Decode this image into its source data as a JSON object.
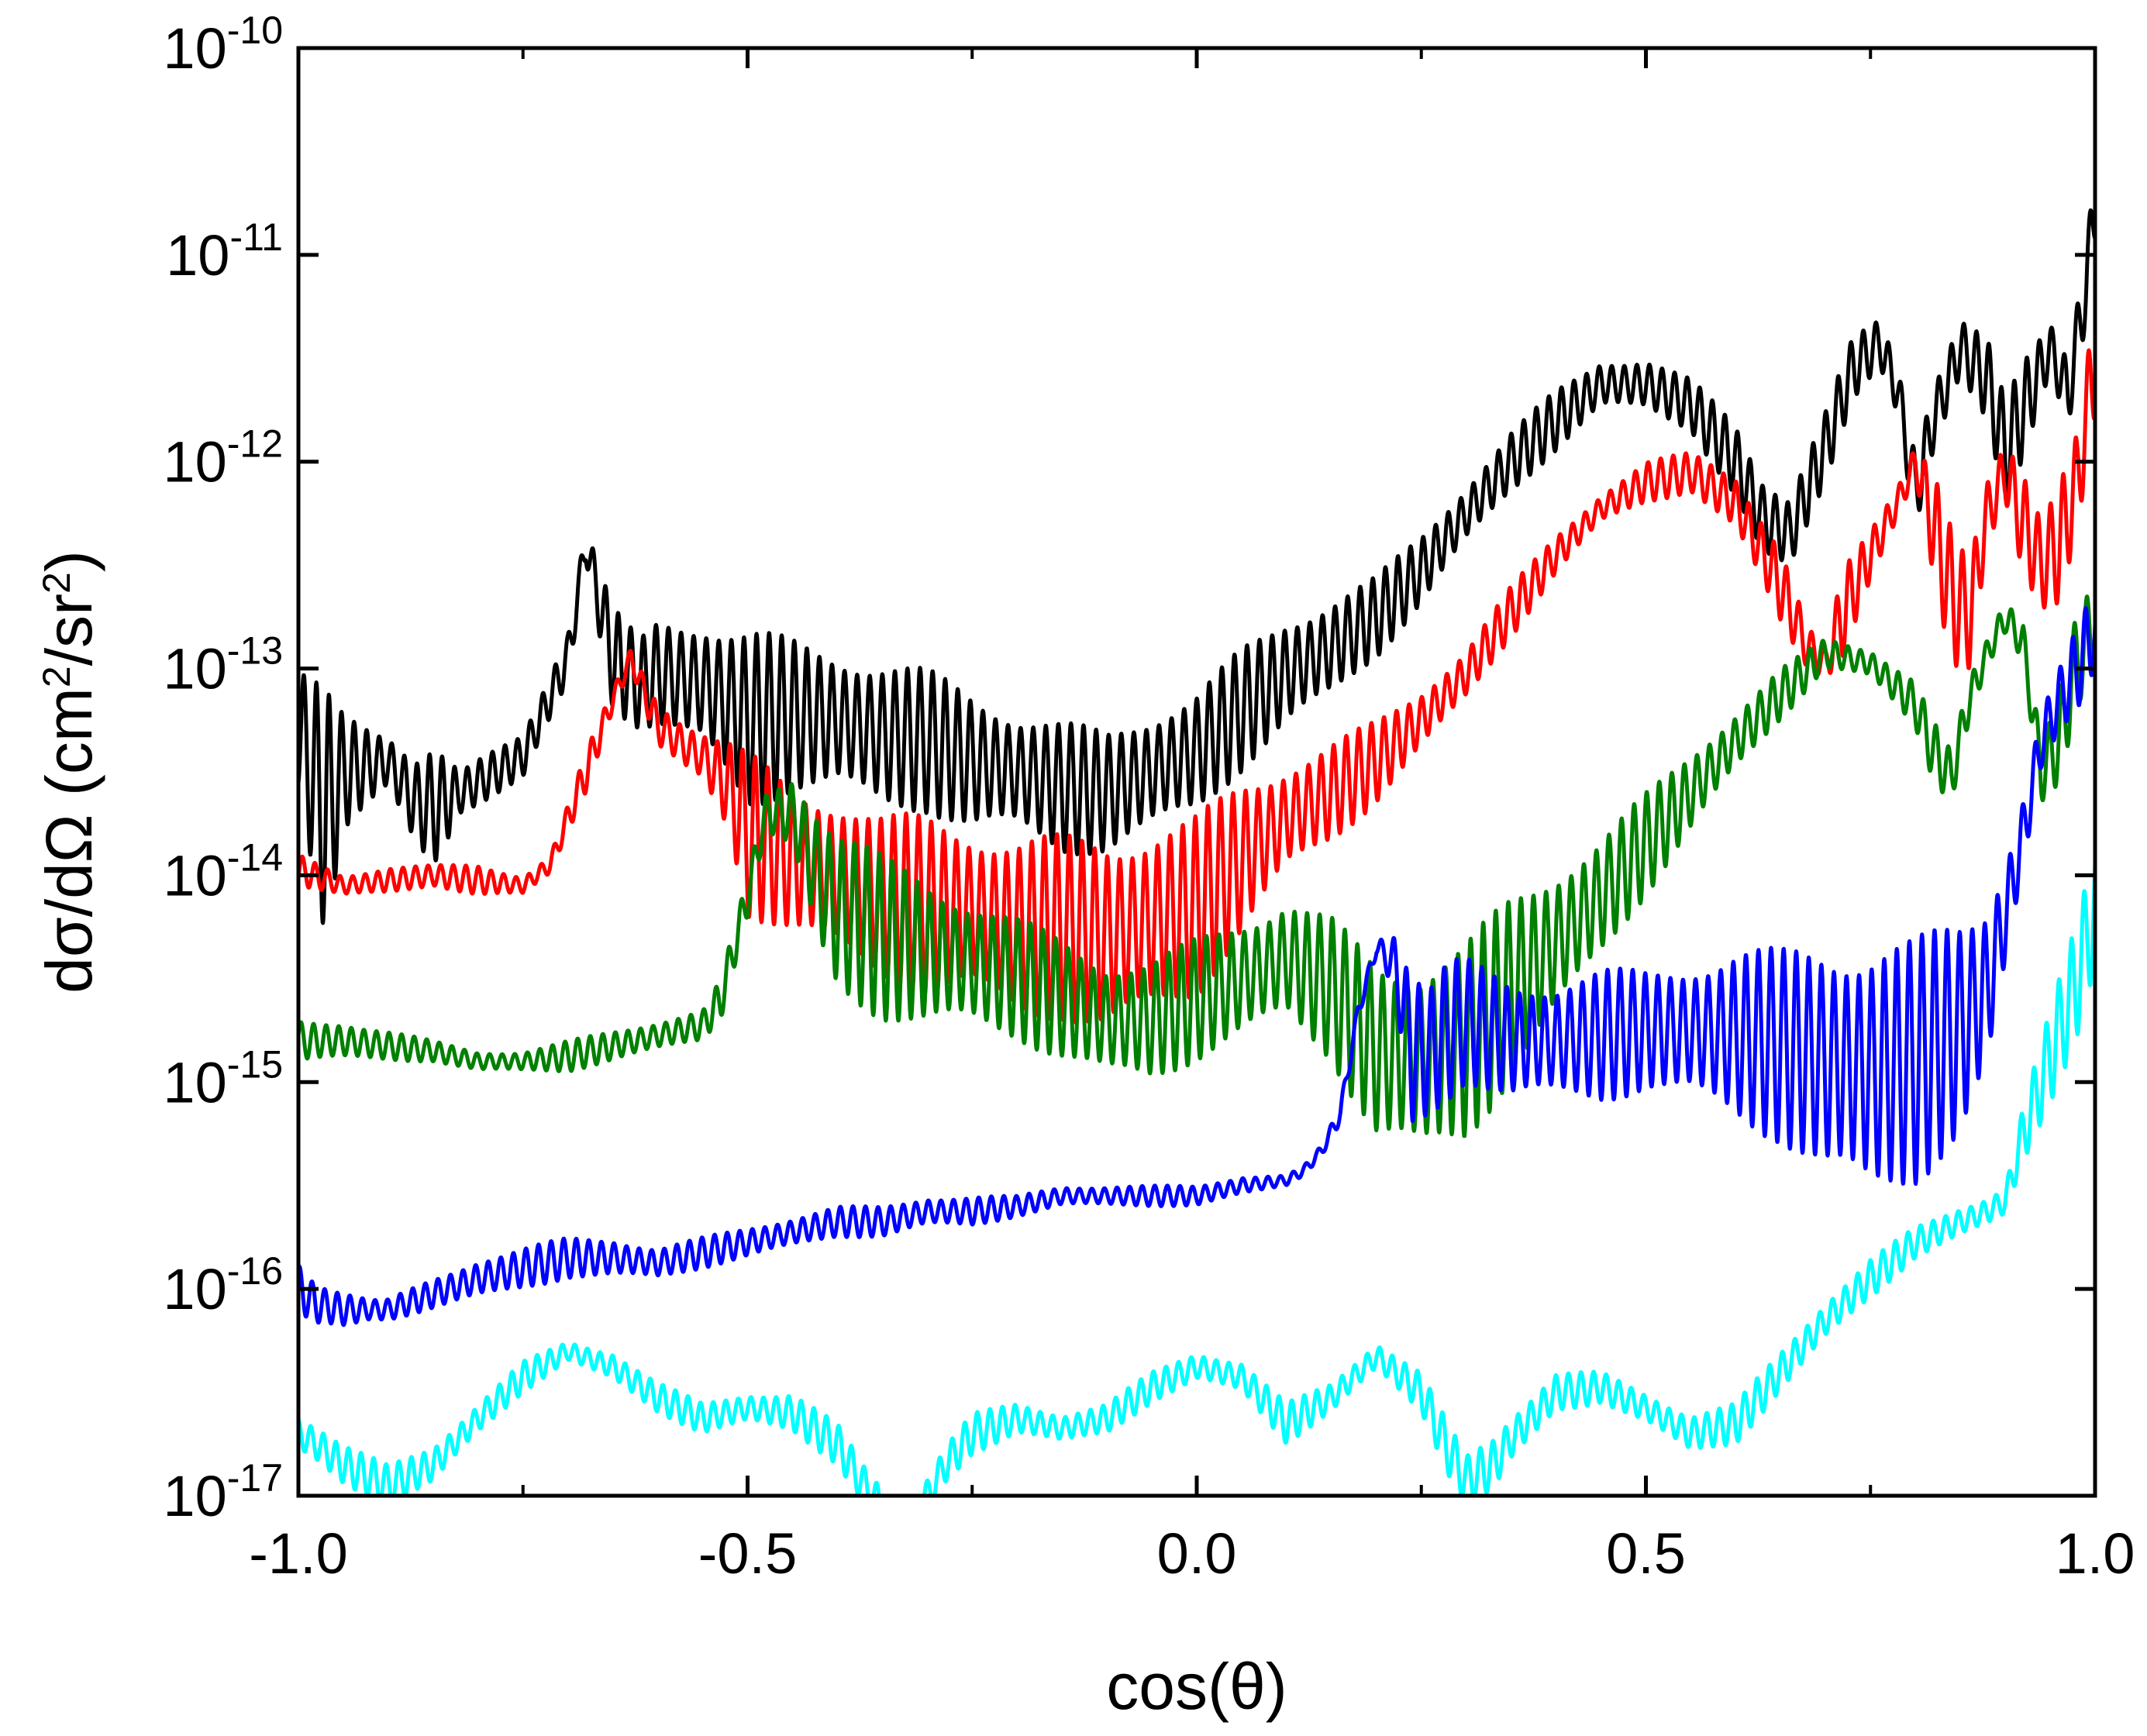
{
  "chart_data": {
    "type": "line",
    "xlabel": "cos(θ)",
    "ylabel": "dσ/dΩ (cm²/sr²)",
    "ylabel_parts": {
      "main": "dσ/dΩ (cm",
      "sup1": "2",
      "mid": "/sr",
      "sup2": "2",
      "end": ")"
    },
    "xscale": "linear",
    "yscale": "log",
    "xlim": [
      -1.0,
      1.0
    ],
    "ylim": [
      1e-17,
      1e-10
    ],
    "x_ticks": [
      -1.0,
      -0.5,
      0.0,
      0.5,
      1.0
    ],
    "x_tick_labels": [
      "-1.0",
      "-0.5",
      "0.0",
      "0.5",
      "1.0"
    ],
    "y_ticks": [
      -17,
      -16,
      -15,
      -14,
      -13,
      -12,
      -11,
      -10
    ],
    "y_tick_labels": [
      {
        "base": "10",
        "exp": "-17"
      },
      {
        "base": "10",
        "exp": "-16"
      },
      {
        "base": "10",
        "exp": "-15"
      },
      {
        "base": "10",
        "exp": "-14"
      },
      {
        "base": "10",
        "exp": "-13"
      },
      {
        "base": "10",
        "exp": "-12"
      },
      {
        "base": "10",
        "exp": "-11"
      },
      {
        "base": "10",
        "exp": "-10"
      }
    ],
    "grid": false,
    "legend": "none",
    "series": [
      {
        "name": "black",
        "color": "#000000",
        "envelope": {
          "x": [
            -1.0,
            -0.97,
            -0.95,
            -0.9,
            -0.87,
            -0.85,
            -0.82,
            -0.75,
            -0.7,
            -0.68,
            -0.65,
            -0.62,
            -0.6,
            -0.55,
            -0.5,
            -0.45,
            -0.4,
            -0.35,
            -0.3,
            -0.25,
            -0.2,
            -0.15,
            -0.1,
            -0.05,
            0.0,
            0.05,
            0.1,
            0.15,
            0.2,
            0.25,
            0.3,
            0.35,
            0.4,
            0.45,
            0.5,
            0.55,
            0.6,
            0.63,
            0.66,
            0.7,
            0.73,
            0.76,
            0.78,
            0.8,
            0.82,
            0.85,
            0.88,
            0.9,
            0.92,
            0.95,
            0.97,
            0.99,
            1.0
          ],
          "hi": [
            -13.0,
            -13.1,
            -13.2,
            -13.3,
            -13.4,
            -13.35,
            -13.5,
            -13.3,
            -12.8,
            -12.3,
            -12.7,
            -12.85,
            -12.75,
            -12.75,
            -12.8,
            -12.85,
            -12.9,
            -12.95,
            -13.0,
            -13.1,
            -13.2,
            -13.25,
            -13.3,
            -13.2,
            -13.1,
            -12.9,
            -12.75,
            -12.65,
            -12.55,
            -12.35,
            -12.1,
            -11.85,
            -11.65,
            -11.5,
            -11.5,
            -11.6,
            -11.8,
            -12.05,
            -12.15,
            -11.75,
            -11.4,
            -11.3,
            -11.5,
            -11.9,
            -11.6,
            -11.3,
            -11.4,
            -11.7,
            -11.5,
            -11.3,
            -11.45,
            -10.9,
            -10.5
          ],
          "lo": [
            -13.6,
            -14.3,
            -13.8,
            -13.6,
            -13.9,
            -14.0,
            -13.7,
            -13.55,
            -13.1,
            -12.5,
            -13.2,
            -13.3,
            -13.3,
            -13.4,
            -13.7,
            -13.6,
            -13.6,
            -13.7,
            -13.7,
            -13.8,
            -13.8,
            -13.9,
            -13.9,
            -13.8,
            -13.7,
            -13.5,
            -13.3,
            -13.15,
            -12.95,
            -12.7,
            -12.4,
            -12.15,
            -11.95,
            -11.75,
            -11.75,
            -11.85,
            -12.2,
            -12.5,
            -12.55,
            -12.1,
            -11.7,
            -11.55,
            -11.8,
            -12.4,
            -12.0,
            -11.6,
            -11.8,
            -12.2,
            -12.0,
            -11.6,
            -11.9,
            -11.4,
            -11.0
          ],
          "osc_period": 0.014
        }
      },
      {
        "name": "red",
        "color": "#ff0000",
        "envelope": {
          "x": [
            -1.0,
            -0.95,
            -0.9,
            -0.85,
            -0.8,
            -0.75,
            -0.72,
            -0.68,
            -0.65,
            -0.63,
            -0.6,
            -0.57,
            -0.55,
            -0.52,
            -0.5,
            -0.45,
            -0.4,
            -0.35,
            -0.3,
            -0.25,
            -0.2,
            -0.15,
            -0.1,
            -0.05,
            0.0,
            0.05,
            0.1,
            0.15,
            0.2,
            0.25,
            0.3,
            0.35,
            0.4,
            0.45,
            0.5,
            0.55,
            0.6,
            0.65,
            0.68,
            0.7,
            0.72,
            0.75,
            0.78,
            0.8,
            0.82,
            0.84,
            0.86,
            0.88,
            0.9,
            0.92,
            0.94,
            0.96,
            0.98,
            1.0
          ],
          "hi": [
            -13.9,
            -14.0,
            -13.95,
            -13.95,
            -13.95,
            -14.0,
            -13.9,
            -13.4,
            -13.1,
            -12.9,
            -13.15,
            -13.25,
            -13.3,
            -13.35,
            -13.4,
            -13.55,
            -13.6,
            -13.7,
            -13.7,
            -13.75,
            -13.8,
            -13.8,
            -13.8,
            -13.75,
            -13.7,
            -13.55,
            -13.45,
            -13.35,
            -13.25,
            -13.1,
            -12.9,
            -12.6,
            -12.35,
            -12.15,
            -12.0,
            -11.95,
            -12.05,
            -12.4,
            -12.8,
            -12.9,
            -12.5,
            -12.3,
            -12.1,
            -11.9,
            -12.0,
            -12.3,
            -12.5,
            -12.1,
            -11.9,
            -12.0,
            -12.2,
            -12.0,
            -11.8,
            -11.2
          ],
          "lo": [
            -14.05,
            -14.1,
            -14.1,
            -14.05,
            -14.1,
            -14.1,
            -14.0,
            -13.6,
            -13.2,
            -13.0,
            -13.4,
            -13.5,
            -13.55,
            -13.8,
            -14.2,
            -14.3,
            -14.4,
            -14.5,
            -14.6,
            -14.6,
            -14.7,
            -14.7,
            -14.8,
            -14.7,
            -14.6,
            -14.3,
            -14.0,
            -13.85,
            -13.65,
            -13.4,
            -13.15,
            -12.85,
            -12.55,
            -12.3,
            -12.2,
            -12.15,
            -12.35,
            -12.8,
            -13.0,
            -13.05,
            -12.95,
            -12.6,
            -12.3,
            -12.1,
            -12.6,
            -13.0,
            -13.0,
            -12.4,
            -12.2,
            -12.6,
            -12.8,
            -12.8,
            -12.4,
            -11.8
          ],
          "osc_period": 0.014
        }
      },
      {
        "name": "green",
        "color": "#008000",
        "envelope": {
          "x": [
            -1.0,
            -0.95,
            -0.9,
            -0.85,
            -0.8,
            -0.75,
            -0.7,
            -0.65,
            -0.6,
            -0.55,
            -0.53,
            -0.5,
            -0.48,
            -0.45,
            -0.42,
            -0.4,
            -0.35,
            -0.3,
            -0.25,
            -0.2,
            -0.15,
            -0.1,
            -0.05,
            0.0,
            0.05,
            0.1,
            0.15,
            0.2,
            0.25,
            0.3,
            0.35,
            0.4,
            0.45,
            0.5,
            0.55,
            0.6,
            0.65,
            0.7,
            0.75,
            0.8,
            0.82,
            0.84,
            0.86,
            0.88,
            0.9,
            0.92,
            0.94,
            0.96,
            0.98,
            1.0
          ],
          "hi": [
            -14.7,
            -14.7,
            -14.75,
            -14.8,
            -14.85,
            -14.85,
            -14.8,
            -14.75,
            -14.7,
            -14.65,
            -14.5,
            -14.0,
            -13.6,
            -13.5,
            -13.65,
            -13.75,
            -13.9,
            -14.0,
            -14.1,
            -14.2,
            -14.3,
            -14.4,
            -14.4,
            -14.3,
            -14.2,
            -14.1,
            -14.2,
            -14.4,
            -14.4,
            -14.3,
            -14.1,
            -13.95,
            -13.8,
            -13.6,
            -13.4,
            -13.2,
            -13.0,
            -12.85,
            -12.9,
            -13.05,
            -13.25,
            -13.4,
            -13.05,
            -12.85,
            -12.65,
            -12.75,
            -13.3,
            -13.1,
            -12.7,
            -12.6
          ],
          "lo": [
            -14.9,
            -14.9,
            -14.9,
            -14.9,
            -14.95,
            -14.95,
            -14.95,
            -14.9,
            -14.85,
            -14.8,
            -14.7,
            -14.2,
            -13.8,
            -13.9,
            -14.4,
            -14.6,
            -14.7,
            -14.75,
            -14.75,
            -14.8,
            -14.9,
            -15.0,
            -15.0,
            -14.9,
            -14.8,
            -14.7,
            -14.9,
            -15.3,
            -15.4,
            -15.3,
            -15.0,
            -14.7,
            -14.4,
            -14.1,
            -13.8,
            -13.5,
            -13.25,
            -13.0,
            -13.05,
            -13.3,
            -13.55,
            -13.65,
            -13.25,
            -13.0,
            -12.85,
            -13.0,
            -13.7,
            -13.6,
            -13.2,
            -13.0
          ],
          "osc_period": 0.014
        }
      },
      {
        "name": "blue",
        "color": "#0000ff",
        "envelope": {
          "x": [
            -1.0,
            -0.98,
            -0.95,
            -0.92,
            -0.9,
            -0.85,
            -0.8,
            -0.75,
            -0.7,
            -0.65,
            -0.6,
            -0.55,
            -0.5,
            -0.45,
            -0.4,
            -0.35,
            -0.3,
            -0.25,
            -0.2,
            -0.15,
            -0.1,
            -0.05,
            0.0,
            0.05,
            0.1,
            0.12,
            0.14,
            0.16,
            0.18,
            0.2,
            0.22,
            0.24,
            0.26,
            0.28,
            0.3,
            0.35,
            0.4,
            0.45,
            0.5,
            0.55,
            0.6,
            0.65,
            0.7,
            0.75,
            0.8,
            0.85,
            0.88,
            0.9,
            0.92,
            0.94,
            0.96,
            0.98,
            1.0
          ],
          "hi": [
            -15.85,
            -15.95,
            -16.0,
            -16.05,
            -16.05,
            -15.95,
            -15.85,
            -15.8,
            -15.75,
            -15.75,
            -15.8,
            -15.75,
            -15.7,
            -15.65,
            -15.6,
            -15.6,
            -15.55,
            -15.55,
            -15.55,
            -15.5,
            -15.5,
            -15.5,
            -15.5,
            -15.45,
            -15.45,
            -15.4,
            -15.3,
            -15.1,
            -14.6,
            -14.3,
            -14.25,
            -14.4,
            -14.5,
            -14.4,
            -14.4,
            -14.5,
            -14.5,
            -14.45,
            -14.45,
            -14.4,
            -14.35,
            -14.35,
            -14.3,
            -14.3,
            -14.3,
            -14.2,
            -14.1,
            -13.9,
            -13.6,
            -13.2,
            -13.0,
            -12.8,
            -12.6
          ],
          "lo": [
            -16.15,
            -16.2,
            -16.2,
            -16.15,
            -16.15,
            -16.1,
            -16.05,
            -16.0,
            -15.95,
            -15.95,
            -15.95,
            -15.9,
            -15.85,
            -15.8,
            -15.75,
            -15.75,
            -15.7,
            -15.7,
            -15.65,
            -15.6,
            -15.6,
            -15.6,
            -15.6,
            -15.55,
            -15.5,
            -15.45,
            -15.35,
            -15.2,
            -14.7,
            -14.4,
            -14.6,
            -15.3,
            -15.2,
            -15.1,
            -15.0,
            -15.1,
            -15.1,
            -15.1,
            -15.05,
            -15.1,
            -15.2,
            -15.3,
            -15.5,
            -15.6,
            -15.5,
            -15.3,
            -15.0,
            -14.5,
            -14.0,
            -13.5,
            -13.3,
            -13.2,
            -13.0
          ],
          "osc_period": 0.014
        }
      },
      {
        "name": "cyan",
        "color": "#00ffff",
        "envelope": {
          "x": [
            -1.0,
            -0.98,
            -0.95,
            -0.9,
            -0.85,
            -0.8,
            -0.75,
            -0.7,
            -0.65,
            -0.6,
            -0.55,
            -0.5,
            -0.45,
            -0.4,
            -0.37,
            -0.34,
            -0.32,
            -0.3,
            -0.28,
            -0.25,
            -0.2,
            -0.15,
            -0.1,
            -0.05,
            0.0,
            0.05,
            0.1,
            0.15,
            0.2,
            0.25,
            0.28,
            0.3,
            0.33,
            0.35,
            0.4,
            0.45,
            0.5,
            0.55,
            0.6,
            0.65,
            0.7,
            0.75,
            0.8,
            0.85,
            0.88,
            0.9,
            0.92,
            0.94,
            0.96,
            0.98,
            1.0
          ],
          "hi": [
            -16.6,
            -16.65,
            -16.75,
            -16.85,
            -16.75,
            -16.55,
            -16.35,
            -16.25,
            -16.3,
            -16.45,
            -16.55,
            -16.5,
            -16.5,
            -16.65,
            -16.85,
            -17.0,
            -17.0,
            -16.9,
            -16.75,
            -16.6,
            -16.55,
            -16.6,
            -16.55,
            -16.4,
            -16.3,
            -16.35,
            -16.55,
            -16.45,
            -16.25,
            -16.4,
            -16.65,
            -16.8,
            -16.7,
            -16.6,
            -16.4,
            -16.4,
            -16.5,
            -16.6,
            -16.55,
            -16.3,
            -16.05,
            -15.85,
            -15.7,
            -15.6,
            -15.55,
            -15.5,
            -15.1,
            -14.8,
            -14.5,
            -14.2,
            -13.8
          ],
          "lo": [
            -16.8,
            -16.85,
            -16.95,
            -17.05,
            -16.95,
            -16.7,
            -16.5,
            -16.35,
            -16.45,
            -16.6,
            -16.7,
            -16.65,
            -16.7,
            -16.85,
            -17.05,
            -17.2,
            -17.2,
            -17.1,
            -16.95,
            -16.8,
            -16.7,
            -16.75,
            -16.7,
            -16.55,
            -16.45,
            -16.5,
            -16.75,
            -16.6,
            -16.4,
            -16.6,
            -16.9,
            -17.05,
            -17.0,
            -16.85,
            -16.6,
            -16.55,
            -16.65,
            -16.8,
            -16.75,
            -16.5,
            -16.25,
            -16.05,
            -15.85,
            -15.75,
            -15.7,
            -15.65,
            -15.4,
            -15.2,
            -15.0,
            -14.8,
            -14.5
          ],
          "osc_period": 0.014
        }
      }
    ]
  }
}
